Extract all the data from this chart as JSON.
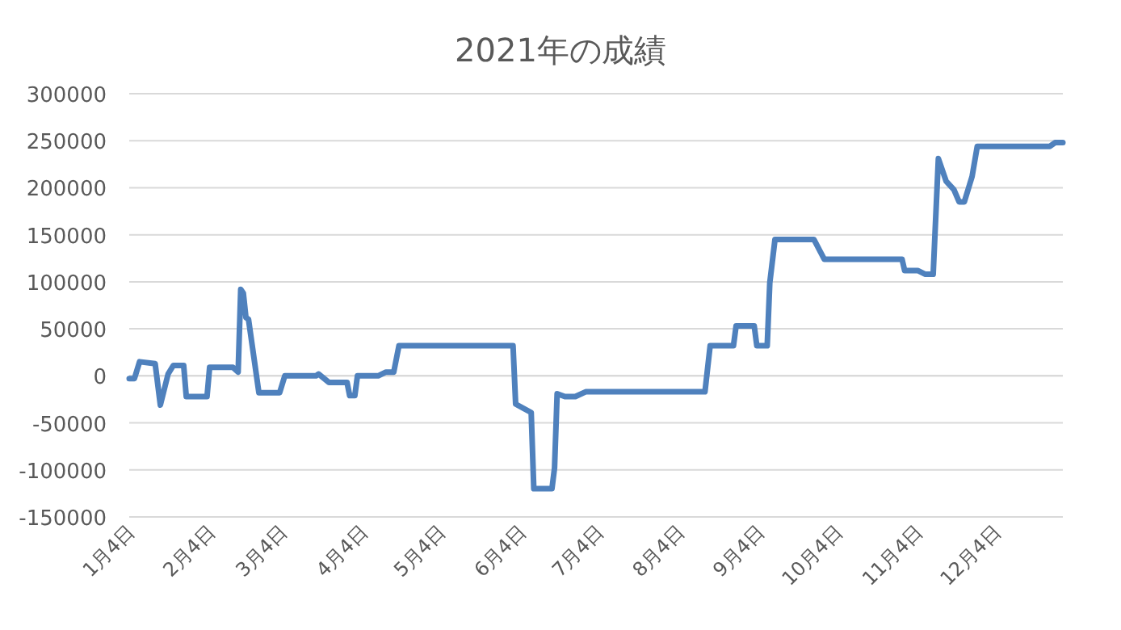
{
  "chart_data": {
    "type": "line",
    "title": "2021年の成績",
    "x": [
      "2021-01-04",
      "2021-01-06",
      "2021-01-08",
      "2021-01-14",
      "2021-01-16",
      "2021-01-19",
      "2021-01-21",
      "2021-01-25",
      "2021-01-26",
      "2021-02-03",
      "2021-02-04",
      "2021-02-13",
      "2021-02-15",
      "2021-02-16",
      "2021-02-17",
      "2021-02-18",
      "2021-02-19",
      "2021-02-23",
      "2021-03-03",
      "2021-03-05",
      "2021-03-17",
      "2021-03-18",
      "2021-03-22",
      "2021-03-29",
      "2021-03-30",
      "2021-04-01",
      "2021-04-02",
      "2021-04-10",
      "2021-04-13",
      "2021-04-16",
      "2021-04-18",
      "2021-06-01",
      "2021-06-02",
      "2021-06-08",
      "2021-06-09",
      "2021-06-16",
      "2021-06-17",
      "2021-06-18",
      "2021-06-21",
      "2021-06-25",
      "2021-06-29",
      "2021-08-14",
      "2021-08-16",
      "2021-08-25",
      "2021-08-26",
      "2021-09-02",
      "2021-09-03",
      "2021-09-07",
      "2021-09-08",
      "2021-09-10",
      "2021-09-25",
      "2021-09-29",
      "2021-10-29",
      "2021-10-30",
      "2021-11-04",
      "2021-11-07",
      "2021-11-10",
      "2021-11-12",
      "2021-11-15",
      "2021-11-18",
      "2021-11-20",
      "2021-11-22",
      "2021-11-25",
      "2021-11-27",
      "2021-12-25",
      "2021-12-27",
      "2021-12-30"
    ],
    "series": [
      {
        "color": "#4f81bd",
        "values": [
          -3000,
          -3000,
          15000,
          13000,
          -31000,
          2000,
          11000,
          11000,
          -22000,
          -22000,
          9000,
          9000,
          4000,
          92000,
          88000,
          62000,
          60000,
          -18000,
          -18000,
          0,
          0,
          2000,
          -7000,
          -7000,
          -21000,
          -21000,
          0,
          0,
          4000,
          4000,
          32000,
          32000,
          -30000,
          -39000,
          -120000,
          -120000,
          -98000,
          -19000,
          -22000,
          -22000,
          -17000,
          -17000,
          32000,
          32000,
          53000,
          53000,
          32000,
          32000,
          99000,
          145000,
          145000,
          124000,
          124000,
          112000,
          112000,
          108000,
          108000,
          231000,
          207000,
          198000,
          185000,
          185000,
          212000,
          244000,
          244000,
          248000,
          248000
        ]
      }
    ],
    "xlim": [
      "2021-01-04",
      "2021-12-30"
    ],
    "xticks": [
      {
        "value": "2021-01-04",
        "label": "1月4日"
      },
      {
        "value": "2021-02-04",
        "label": "2月4日"
      },
      {
        "value": "2021-03-04",
        "label": "3月4日"
      },
      {
        "value": "2021-04-04",
        "label": "4月4日"
      },
      {
        "value": "2021-05-04",
        "label": "5月4日"
      },
      {
        "value": "2021-06-04",
        "label": "6月4日"
      },
      {
        "value": "2021-07-04",
        "label": "7月4日"
      },
      {
        "value": "2021-08-04",
        "label": "8月4日"
      },
      {
        "value": "2021-09-04",
        "label": "9月4日"
      },
      {
        "value": "2021-10-04",
        "label": "10月4日"
      },
      {
        "value": "2021-11-04",
        "label": "11月4日"
      },
      {
        "value": "2021-12-04",
        "label": "12月4日"
      }
    ],
    "ylim": [
      -150000,
      300000
    ],
    "yticks": [
      -150000,
      -100000,
      -50000,
      0,
      50000,
      100000,
      150000,
      200000,
      250000,
      300000
    ],
    "grid": "y",
    "line_style": "solid"
  }
}
